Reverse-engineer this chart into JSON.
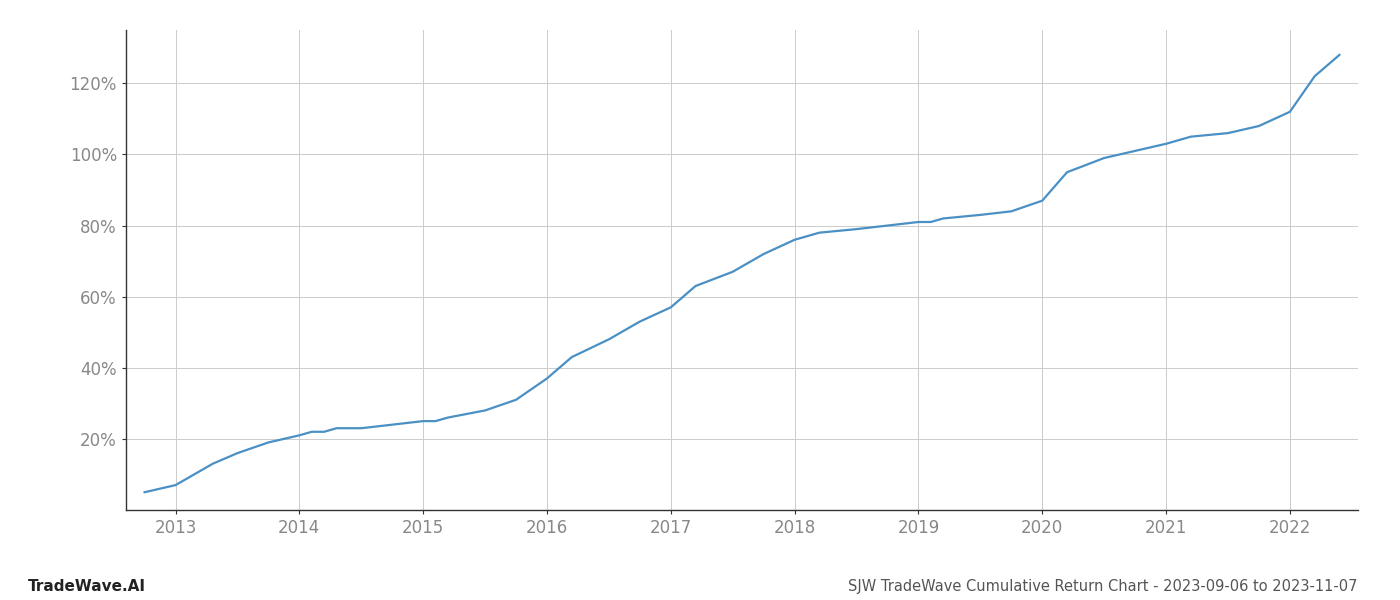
{
  "title": "SJW TradeWave Cumulative Return Chart - 2023-09-06 to 2023-11-07",
  "watermark": "TradeWave.AI",
  "line_color": "#4a90c4",
  "background_color": "#ffffff",
  "grid_color": "#cccccc",
  "x_years": [
    2013,
    2014,
    2015,
    2016,
    2017,
    2018,
    2019,
    2020,
    2021,
    2022
  ],
  "x_values": [
    2012.75,
    2013.0,
    2013.1,
    2013.2,
    2013.3,
    2013.5,
    2013.75,
    2014.0,
    2014.1,
    2014.2,
    2014.3,
    2014.5,
    2014.75,
    2015.0,
    2015.1,
    2015.2,
    2015.5,
    2015.75,
    2016.0,
    2016.1,
    2016.2,
    2016.5,
    2016.75,
    2017.0,
    2017.1,
    2017.2,
    2017.5,
    2017.75,
    2018.0,
    2018.1,
    2018.2,
    2018.5,
    2018.75,
    2019.0,
    2019.1,
    2019.2,
    2019.5,
    2019.75,
    2020.0,
    2020.1,
    2020.2,
    2020.5,
    2020.75,
    2021.0,
    2021.1,
    2021.2,
    2021.5,
    2021.75,
    2022.0,
    2022.1,
    2022.2,
    2022.4
  ],
  "y_values": [
    5,
    7,
    9,
    11,
    13,
    16,
    19,
    21,
    22,
    22,
    23,
    23,
    24,
    25,
    25,
    26,
    28,
    31,
    37,
    40,
    43,
    48,
    53,
    57,
    60,
    63,
    67,
    72,
    76,
    77,
    78,
    79,
    80,
    81,
    81,
    82,
    83,
    84,
    87,
    91,
    95,
    99,
    101,
    103,
    104,
    105,
    106,
    108,
    112,
    117,
    122,
    128
  ],
  "yticks": [
    20,
    40,
    60,
    80,
    100,
    120
  ],
  "ylim": [
    0,
    135
  ],
  "xlim": [
    2012.6,
    2022.55
  ],
  "tick_label_color": "#888888",
  "title_color": "#555555",
  "watermark_color": "#222222",
  "line_width": 1.6,
  "title_fontsize": 10.5,
  "tick_fontsize": 12,
  "watermark_fontsize": 11,
  "spine_color": "#333333"
}
